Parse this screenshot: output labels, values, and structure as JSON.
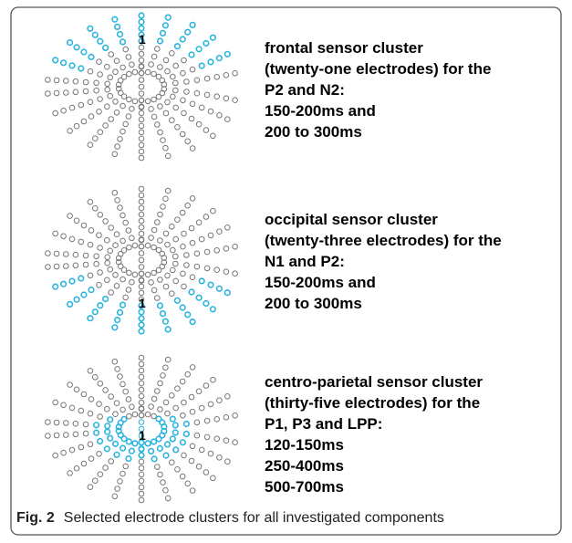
{
  "panels": [
    {
      "marker": "1",
      "lines": [
        "frontal sensor cluster",
        "(twenty-one electrodes) for the",
        "P2 and N2:",
        "150-200ms and",
        "200 to 300ms"
      ]
    },
    {
      "marker": "1",
      "lines": [
        "occipital sensor cluster",
        "(twenty-three electrodes) for the",
        "N1 and P2:",
        "150-200ms and",
        "200 to 300ms"
      ]
    },
    {
      "marker": "1",
      "lines": [
        "centro-parietal sensor cluster",
        "(thirty-five electrodes) for the",
        "P1, P3 and LPP:",
        "120-150ms",
        "250-400ms",
        "500-700ms"
      ]
    }
  ],
  "caption": {
    "label": "Fig. 2",
    "text": "Selected electrode clusters for all investigated components"
  }
}
